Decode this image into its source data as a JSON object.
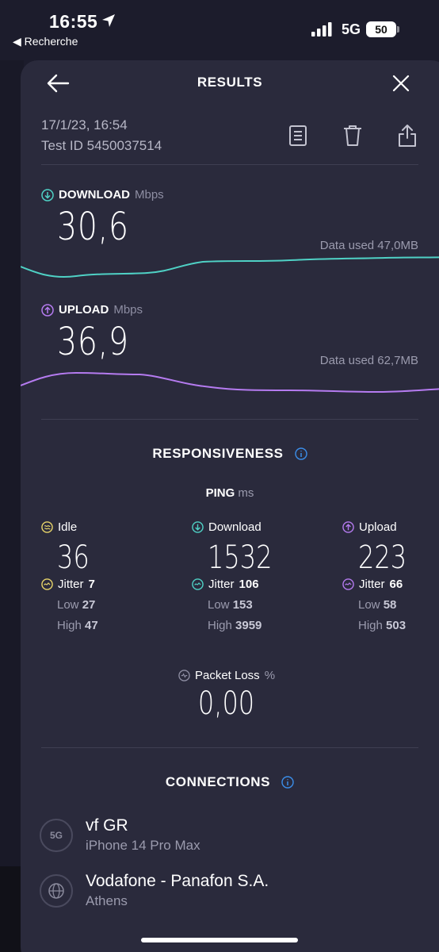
{
  "status_bar": {
    "time": "16:55",
    "back_app": "◀ Recherche",
    "network": "5G",
    "battery": "50"
  },
  "header": {
    "title": "RESULTS"
  },
  "meta": {
    "date": "17/1/23, 16:54",
    "test_id": "Test ID 5450037514"
  },
  "download": {
    "label": "DOWNLOAD",
    "unit": "Mbps",
    "value": "30,6",
    "data_used": "Data used 47,0MB"
  },
  "upload": {
    "label": "UPLOAD",
    "unit": "Mbps",
    "value": "36,9",
    "data_used": "Data used 62,7MB"
  },
  "responsiveness": {
    "title": "RESPONSIVENESS",
    "ping_label": "PING",
    "ping_unit": "ms",
    "columns": [
      {
        "label": "Idle",
        "value": "36",
        "jitter_label": "Jitter",
        "jitter": "7",
        "low_label": "Low",
        "low": "27",
        "high_label": "High",
        "high": "47"
      },
      {
        "label": "Download",
        "value": "1532",
        "jitter_label": "Jitter",
        "jitter": "106",
        "low_label": "Low",
        "low": "153",
        "high_label": "High",
        "high": "3959"
      },
      {
        "label": "Upload",
        "value": "223",
        "jitter_label": "Jitter",
        "jitter": "66",
        "low_label": "Low",
        "low": "58",
        "high_label": "High",
        "high": "503"
      }
    ],
    "packet_loss_label": "Packet Loss",
    "packet_loss_unit": "%",
    "packet_loss": "0,00"
  },
  "connections": {
    "title": "CONNECTIONS",
    "items": [
      {
        "badge": "5G",
        "name": "vf GR",
        "detail": "iPhone 14 Pro Max"
      },
      {
        "badge": "",
        "name": "Vodafone - Panafon S.A.",
        "detail": "Athens"
      }
    ]
  },
  "colors": {
    "download": "#4fd1c5",
    "upload": "#b57bf0",
    "idle": "#e8d56a",
    "info": "#3b8eea"
  }
}
